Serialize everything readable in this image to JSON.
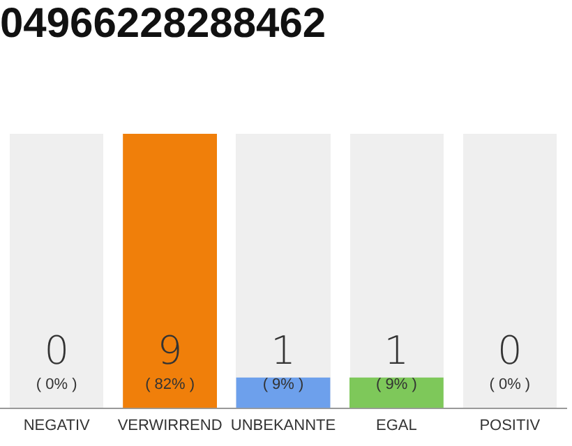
{
  "chart_data": {
    "type": "bar",
    "title": "04966228288462",
    "categories": [
      "NEGATIV",
      "VERWIRREND",
      "UNBEKANNTE",
      "EGAL",
      "POSITIV"
    ],
    "values": [
      0,
      9,
      1,
      1,
      0
    ],
    "colors": [
      "#bdbdbd",
      "#f07f0a",
      "#6da0ec",
      "#7ec85a",
      "#bdbdbd"
    ],
    "data_labels": true,
    "tick_labels": "x",
    "grid": false,
    "legend": false,
    "annotations": [
      "( 0% )",
      "( 82% )",
      "( 9% )",
      "( 9% )",
      "( 0% )"
    ]
  }
}
